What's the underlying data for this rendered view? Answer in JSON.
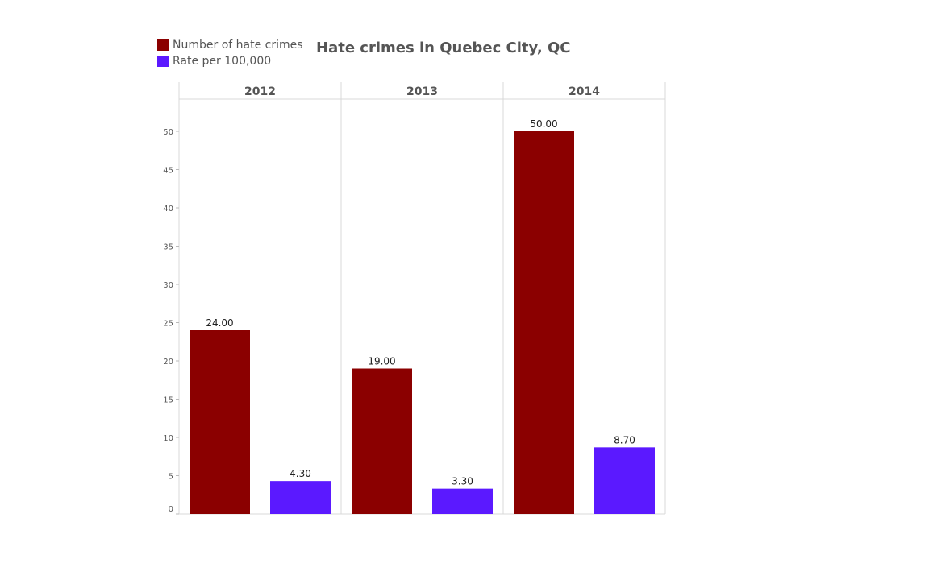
{
  "chart_data": {
    "type": "bar",
    "title": "Hate crimes in Quebec City, QC",
    "categories": [
      "2012",
      "2013",
      "2014"
    ],
    "series": [
      {
        "name": "Number of hate crimes",
        "color": "#8b0000",
        "values": [
          24,
          19,
          50
        ],
        "labels": [
          "24.00",
          "19.00",
          "50.00"
        ]
      },
      {
        "name": "Rate per 100,000",
        "color": "#5b19ff",
        "values": [
          4.3,
          3.3,
          8.7
        ],
        "labels": [
          "4.30",
          "3.30",
          "8.70"
        ]
      }
    ],
    "yticks": [
      0,
      5,
      10,
      15,
      20,
      25,
      30,
      35,
      40,
      45,
      50
    ],
    "ytick_labels": [
      "0",
      "5",
      "10",
      "15",
      "20",
      "25",
      "30",
      "35",
      "40",
      "45",
      "50"
    ],
    "ylim": [
      0,
      50
    ],
    "grid": false,
    "legend_position": "top-left"
  }
}
